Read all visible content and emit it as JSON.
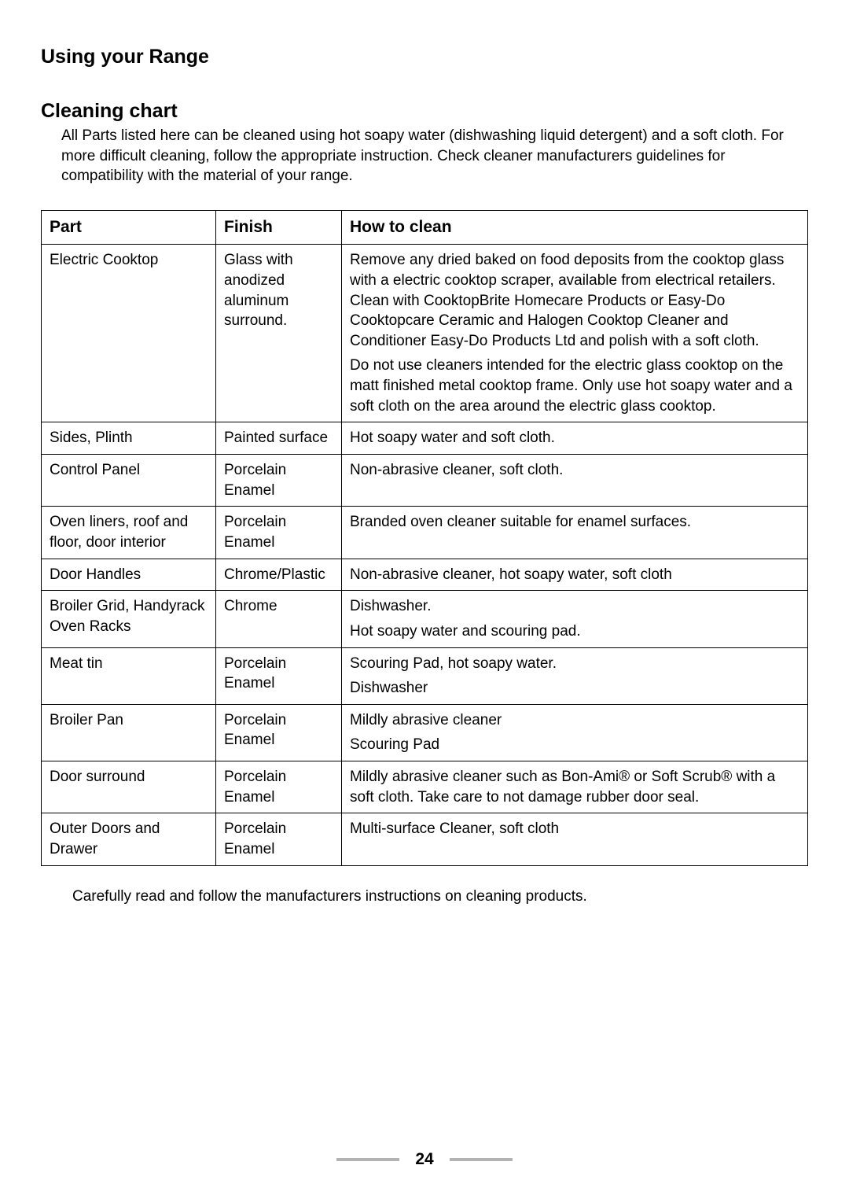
{
  "page_title": "Using your Range",
  "section_title": "Cleaning chart",
  "intro_text": "All Parts listed here can be cleaned using hot soapy water (dishwashing liquid detergent) and a soft cloth. For more difficult cleaning, follow the appropriate instruction. Check cleaner manufacturers guidelines for compatibility with the material of your range.",
  "headers": {
    "part": "Part",
    "finish": "Finish",
    "how": "How to clean"
  },
  "rows": [
    {
      "part": "Electric Cooktop",
      "finish": "Glass with anodized aluminum surround.",
      "how_blocks": [
        "Remove any dried baked on food deposits from the cooktop glass with a electric cooktop scraper, available from electrical retailers. Clean with CooktopBrite Homecare Products or Easy-Do Cooktopcare Ceramic and Halogen Cooktop Cleaner and Conditioner Easy-Do Products Ltd and polish with a soft cloth.",
        "Do not use cleaners intended for the electric glass cooktop on the matt finished metal cooktop frame. Only use hot soapy water and a soft cloth on the area around the electric glass cooktop."
      ]
    },
    {
      "part": "Sides, Plinth",
      "finish": "Painted surface",
      "how_blocks": [
        "Hot soapy water and soft cloth."
      ]
    },
    {
      "part": "Control Panel",
      "finish": "Porcelain Enamel",
      "how_blocks": [
        "Non-abrasive cleaner, soft cloth."
      ]
    },
    {
      "part": "Oven liners, roof and floor, door interior",
      "finish": "Porcelain Enamel",
      "how_blocks": [
        "Branded oven cleaner suitable for enamel surfaces."
      ]
    },
    {
      "part": "Door Handles",
      "finish": "Chrome/Plastic",
      "how_blocks": [
        "Non-abrasive cleaner, hot soapy water, soft cloth"
      ]
    },
    {
      "part": "Broiler Grid, Handyrack Oven Racks",
      "finish": "Chrome",
      "how_blocks": [
        "Dishwasher.",
        "Hot soapy water and scouring pad."
      ]
    },
    {
      "part": "Meat tin",
      "finish": "Porcelain Enamel",
      "how_blocks": [
        "Scouring Pad, hot soapy water.",
        "Dishwasher"
      ]
    },
    {
      "part": "Broiler Pan",
      "finish": "Porcelain Enamel",
      "how_blocks": [
        "Mildly abrasive cleaner",
        "Scouring Pad"
      ]
    },
    {
      "part": "Door surround",
      "finish": "Porcelain Enamel",
      "how_blocks": [
        "Mildly abrasive cleaner such as Bon-Ami® or Soft Scrub® with a soft cloth. Take care to not damage rubber door seal."
      ]
    },
    {
      "part": "Outer Doors and Drawer",
      "finish": "Porcelain Enamel",
      "how_blocks": [
        "Multi-surface Cleaner, soft cloth"
      ]
    }
  ],
  "closing_text": "Carefully read and follow the manufacturers instructions on cleaning products.",
  "page_number": "24"
}
